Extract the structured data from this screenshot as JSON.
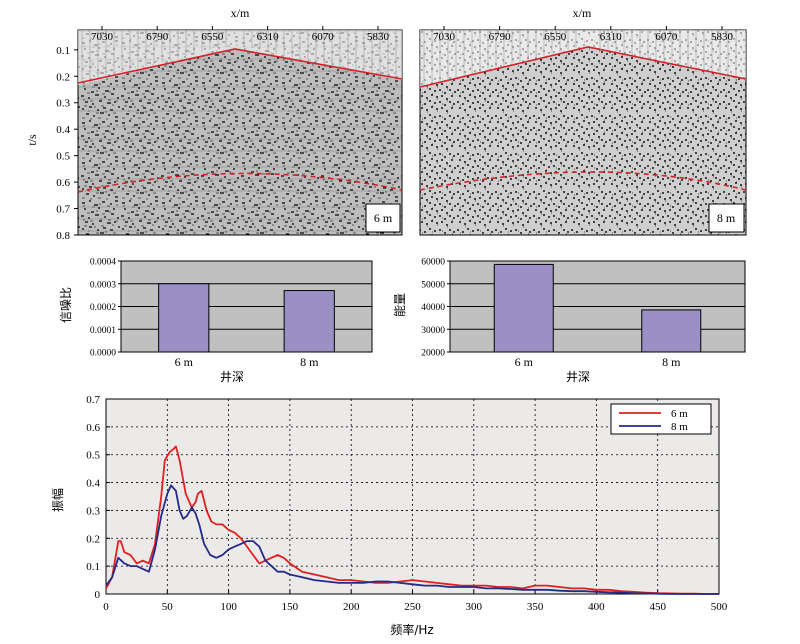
{
  "seismic": {
    "x_label": "x/m",
    "t_label": "t/s",
    "x_ticks": [
      "7030",
      "6790",
      "6550",
      "6310",
      "6070",
      "5830"
    ],
    "t_ticks": [
      "0.1",
      "0.2",
      "0.3",
      "0.4",
      "0.5",
      "0.6",
      "0.7",
      "0.8"
    ],
    "panels": [
      {
        "label": "6 m"
      },
      {
        "label": "8 m"
      }
    ],
    "colors": {
      "line_solid": "#d4212a",
      "line_dashed": "#d4212a"
    }
  },
  "chart_data": [
    {
      "type": "bar",
      "categories": [
        "6 m",
        "8 m"
      ],
      "values": [
        0.0003,
        0.00027
      ],
      "ylabel": "信噪比",
      "xlabel": "井深",
      "ylim": [
        0,
        0.0004
      ],
      "yticks": [
        "0.0000",
        "0.0001",
        "0.0002",
        "0.0003",
        "0.0004"
      ],
      "bar_color": "#9b90c6",
      "background": "#c0c0c0"
    },
    {
      "type": "bar",
      "categories": [
        "6 m",
        "8 m"
      ],
      "values": [
        58500,
        38500
      ],
      "ylabel": "能量",
      "xlabel": "井深",
      "ylim": [
        20000,
        60000
      ],
      "yticks": [
        "20000",
        "30000",
        "40000",
        "50000",
        "60000"
      ],
      "bar_color": "#9b90c6",
      "background": "#c0c0c0"
    },
    {
      "type": "line",
      "xlabel": "频率/Hz",
      "ylabel": "振幅",
      "xlim": [
        0,
        500
      ],
      "ylim": [
        0,
        0.7
      ],
      "xticks": [
        "0",
        "50",
        "100",
        "150",
        "200",
        "250",
        "300",
        "350",
        "400",
        "450",
        "500"
      ],
      "yticks": [
        "0",
        "0.1",
        "0.2",
        "0.3",
        "0.4",
        "0.5",
        "0.6",
        "0.7"
      ],
      "grid": true,
      "legend": "top-right",
      "series": [
        {
          "name": "6 m",
          "color": "#e11f1f",
          "points": [
            [
              0,
              0.02
            ],
            [
              5,
              0.06
            ],
            [
              10,
              0.19
            ],
            [
              12,
              0.19
            ],
            [
              15,
              0.15
            ],
            [
              20,
              0.14
            ],
            [
              25,
              0.11
            ],
            [
              30,
              0.12
            ],
            [
              35,
              0.11
            ],
            [
              40,
              0.18
            ],
            [
              45,
              0.35
            ],
            [
              48,
              0.48
            ],
            [
              52,
              0.51
            ],
            [
              55,
              0.52
            ],
            [
              57,
              0.53
            ],
            [
              60,
              0.48
            ],
            [
              65,
              0.36
            ],
            [
              70,
              0.31
            ],
            [
              73,
              0.33
            ],
            [
              75,
              0.36
            ],
            [
              78,
              0.37
            ],
            [
              82,
              0.3
            ],
            [
              86,
              0.26
            ],
            [
              90,
              0.25
            ],
            [
              95,
              0.25
            ],
            [
              100,
              0.23
            ],
            [
              105,
              0.22
            ],
            [
              110,
              0.2
            ],
            [
              115,
              0.17
            ],
            [
              120,
              0.14
            ],
            [
              125,
              0.11
            ],
            [
              130,
              0.12
            ],
            [
              135,
              0.13
            ],
            [
              140,
              0.14
            ],
            [
              145,
              0.13
            ],
            [
              150,
              0.11
            ],
            [
              160,
              0.08
            ],
            [
              170,
              0.07
            ],
            [
              180,
              0.06
            ],
            [
              190,
              0.05
            ],
            [
              200,
              0.05
            ],
            [
              210,
              0.045
            ],
            [
              220,
              0.04
            ],
            [
              230,
              0.04
            ],
            [
              240,
              0.045
            ],
            [
              250,
              0.05
            ],
            [
              260,
              0.045
            ],
            [
              270,
              0.04
            ],
            [
              280,
              0.035
            ],
            [
              290,
              0.03
            ],
            [
              300,
              0.03
            ],
            [
              310,
              0.03
            ],
            [
              320,
              0.025
            ],
            [
              330,
              0.025
            ],
            [
              340,
              0.02
            ],
            [
              350,
              0.03
            ],
            [
              360,
              0.03
            ],
            [
              370,
              0.025
            ],
            [
              380,
              0.02
            ],
            [
              390,
              0.02
            ],
            [
              400,
              0.015
            ],
            [
              410,
              0.015
            ],
            [
              420,
              0.01
            ],
            [
              430,
              0.008
            ],
            [
              440,
              0.005
            ],
            [
              450,
              0.003
            ],
            [
              460,
              0.002
            ],
            [
              470,
              0.001
            ],
            [
              480,
              0.001
            ],
            [
              490,
              0.0
            ],
            [
              500,
              0.0
            ]
          ]
        },
        {
          "name": "8 m",
          "color": "#232a8a",
          "points": [
            [
              0,
              0.03
            ],
            [
              5,
              0.06
            ],
            [
              10,
              0.13
            ],
            [
              15,
              0.11
            ],
            [
              20,
              0.1
            ],
            [
              25,
              0.1
            ],
            [
              30,
              0.09
            ],
            [
              35,
              0.08
            ],
            [
              40,
              0.16
            ],
            [
              45,
              0.28
            ],
            [
              50,
              0.36
            ],
            [
              53,
              0.39
            ],
            [
              57,
              0.37
            ],
            [
              60,
              0.3
            ],
            [
              63,
              0.27
            ],
            [
              66,
              0.28
            ],
            [
              70,
              0.31
            ],
            [
              73,
              0.29
            ],
            [
              76,
              0.25
            ],
            [
              80,
              0.18
            ],
            [
              85,
              0.14
            ],
            [
              90,
              0.13
            ],
            [
              95,
              0.14
            ],
            [
              100,
              0.16
            ],
            [
              105,
              0.17
            ],
            [
              110,
              0.18
            ],
            [
              115,
              0.19
            ],
            [
              120,
              0.19
            ],
            [
              125,
              0.17
            ],
            [
              130,
              0.12
            ],
            [
              135,
              0.1
            ],
            [
              140,
              0.08
            ],
            [
              145,
              0.08
            ],
            [
              150,
              0.07
            ],
            [
              160,
              0.06
            ],
            [
              170,
              0.05
            ],
            [
              180,
              0.045
            ],
            [
              190,
              0.04
            ],
            [
              200,
              0.04
            ],
            [
              210,
              0.04
            ],
            [
              220,
              0.045
            ],
            [
              230,
              0.045
            ],
            [
              240,
              0.04
            ],
            [
              250,
              0.035
            ],
            [
              260,
              0.03
            ],
            [
              270,
              0.03
            ],
            [
              280,
              0.025
            ],
            [
              290,
              0.025
            ],
            [
              300,
              0.025
            ],
            [
              310,
              0.02
            ],
            [
              320,
              0.02
            ],
            [
              330,
              0.018
            ],
            [
              340,
              0.015
            ],
            [
              350,
              0.015
            ],
            [
              360,
              0.015
            ],
            [
              370,
              0.012
            ],
            [
              380,
              0.01
            ],
            [
              390,
              0.01
            ],
            [
              400,
              0.008
            ],
            [
              410,
              0.006
            ],
            [
              420,
              0.005
            ],
            [
              430,
              0.003
            ],
            [
              440,
              0.002
            ],
            [
              450,
              0.001
            ],
            [
              460,
              0.0
            ],
            [
              480,
              0.0
            ],
            [
              500,
              0.0
            ]
          ]
        }
      ]
    }
  ]
}
